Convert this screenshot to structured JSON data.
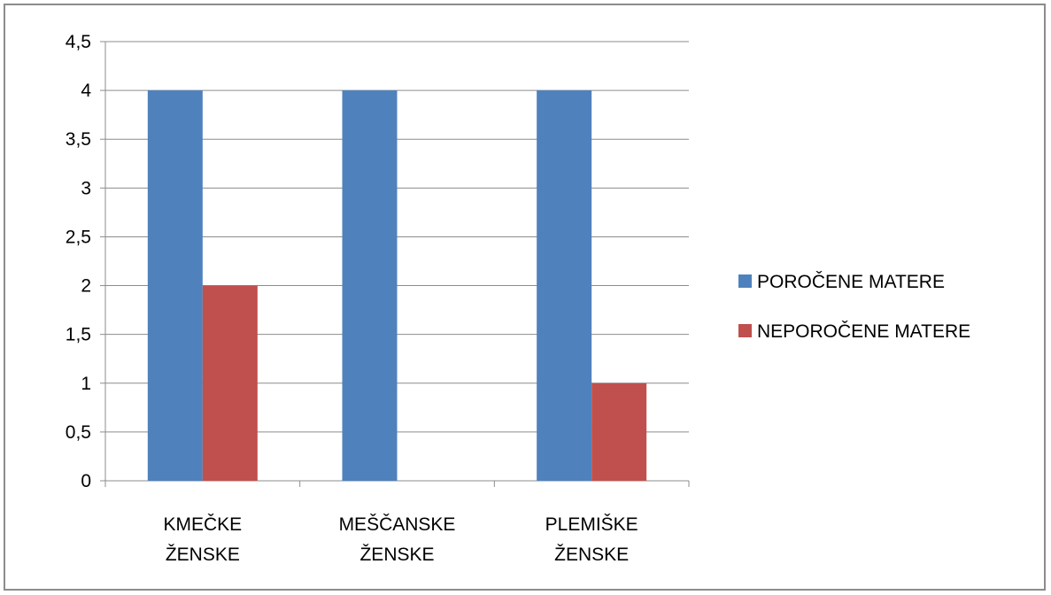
{
  "chart_data": {
    "type": "bar",
    "categories": [
      [
        "KMEČKE",
        "ŽENSKE"
      ],
      [
        "MEŠČANSKE",
        "ŽENSKE"
      ],
      [
        "PLEMIŠKE",
        "ŽENSKE"
      ]
    ],
    "series": [
      {
        "name": "POROČENE MATERE",
        "values": [
          4,
          4,
          4
        ],
        "color": "#4f81bd"
      },
      {
        "name": "NEPOROČENE MATERE",
        "values": [
          2,
          0,
          1
        ],
        "color": "#c0504d"
      }
    ],
    "ylim": [
      0,
      4.5
    ],
    "ytick_step": 0.5,
    "yticks": [
      "0",
      "0,5",
      "1",
      "1,5",
      "2",
      "2,5",
      "3",
      "3,5",
      "4",
      "4,5"
    ],
    "grid": true,
    "legend_position": "right"
  }
}
